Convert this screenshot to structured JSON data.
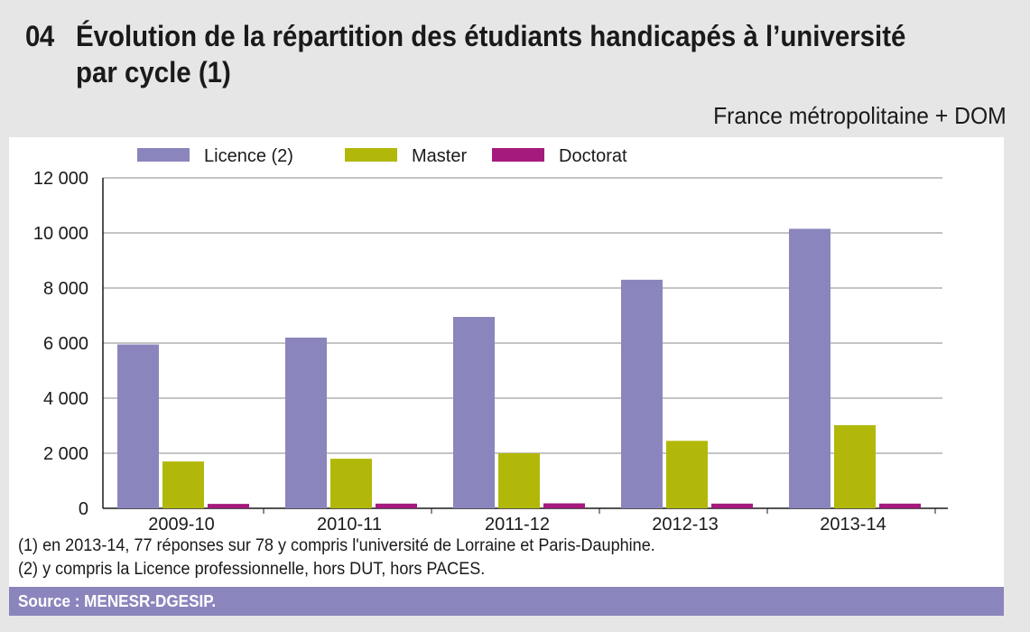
{
  "figure": {
    "number": "04",
    "title_line1": "Évolution de la répartition des étudiants handicapés à l’université",
    "title_line2": "par cycle (1)",
    "scope": "France métropolitaine + DOM",
    "notes": [
      "(1) en 2013-14, 77 réponses sur 78 y compris l'université de Lorraine et Paris-Dauphine.",
      "(2) y compris la Licence professionnelle, hors DUT, hors PACES."
    ],
    "source": "Source : MENESR-DGESIP."
  },
  "chart_data": {
    "type": "bar",
    "categories": [
      "2009-10",
      "2010-11",
      "2011-12",
      "2012-13",
      "2013-14"
    ],
    "series": [
      {
        "name": "Licence (2)",
        "color": "#8b85bd",
        "values": [
          5950,
          6200,
          6950,
          8300,
          10150
        ]
      },
      {
        "name": "Master",
        "color": "#b2b80a",
        "values": [
          1700,
          1800,
          2000,
          2450,
          3020
        ]
      },
      {
        "name": "Doctorat",
        "color": "#a51a7d",
        "values": [
          160,
          170,
          180,
          170,
          170
        ]
      }
    ],
    "yticks": [
      0,
      2000,
      4000,
      6000,
      8000,
      10000,
      12000
    ],
    "ytick_labels": [
      "0",
      "2 000",
      "4 000",
      "6 000",
      "8 000",
      "10 000",
      "12 000"
    ],
    "ylim": [
      0,
      12000
    ],
    "grid": "horizontal",
    "legend": "top"
  }
}
